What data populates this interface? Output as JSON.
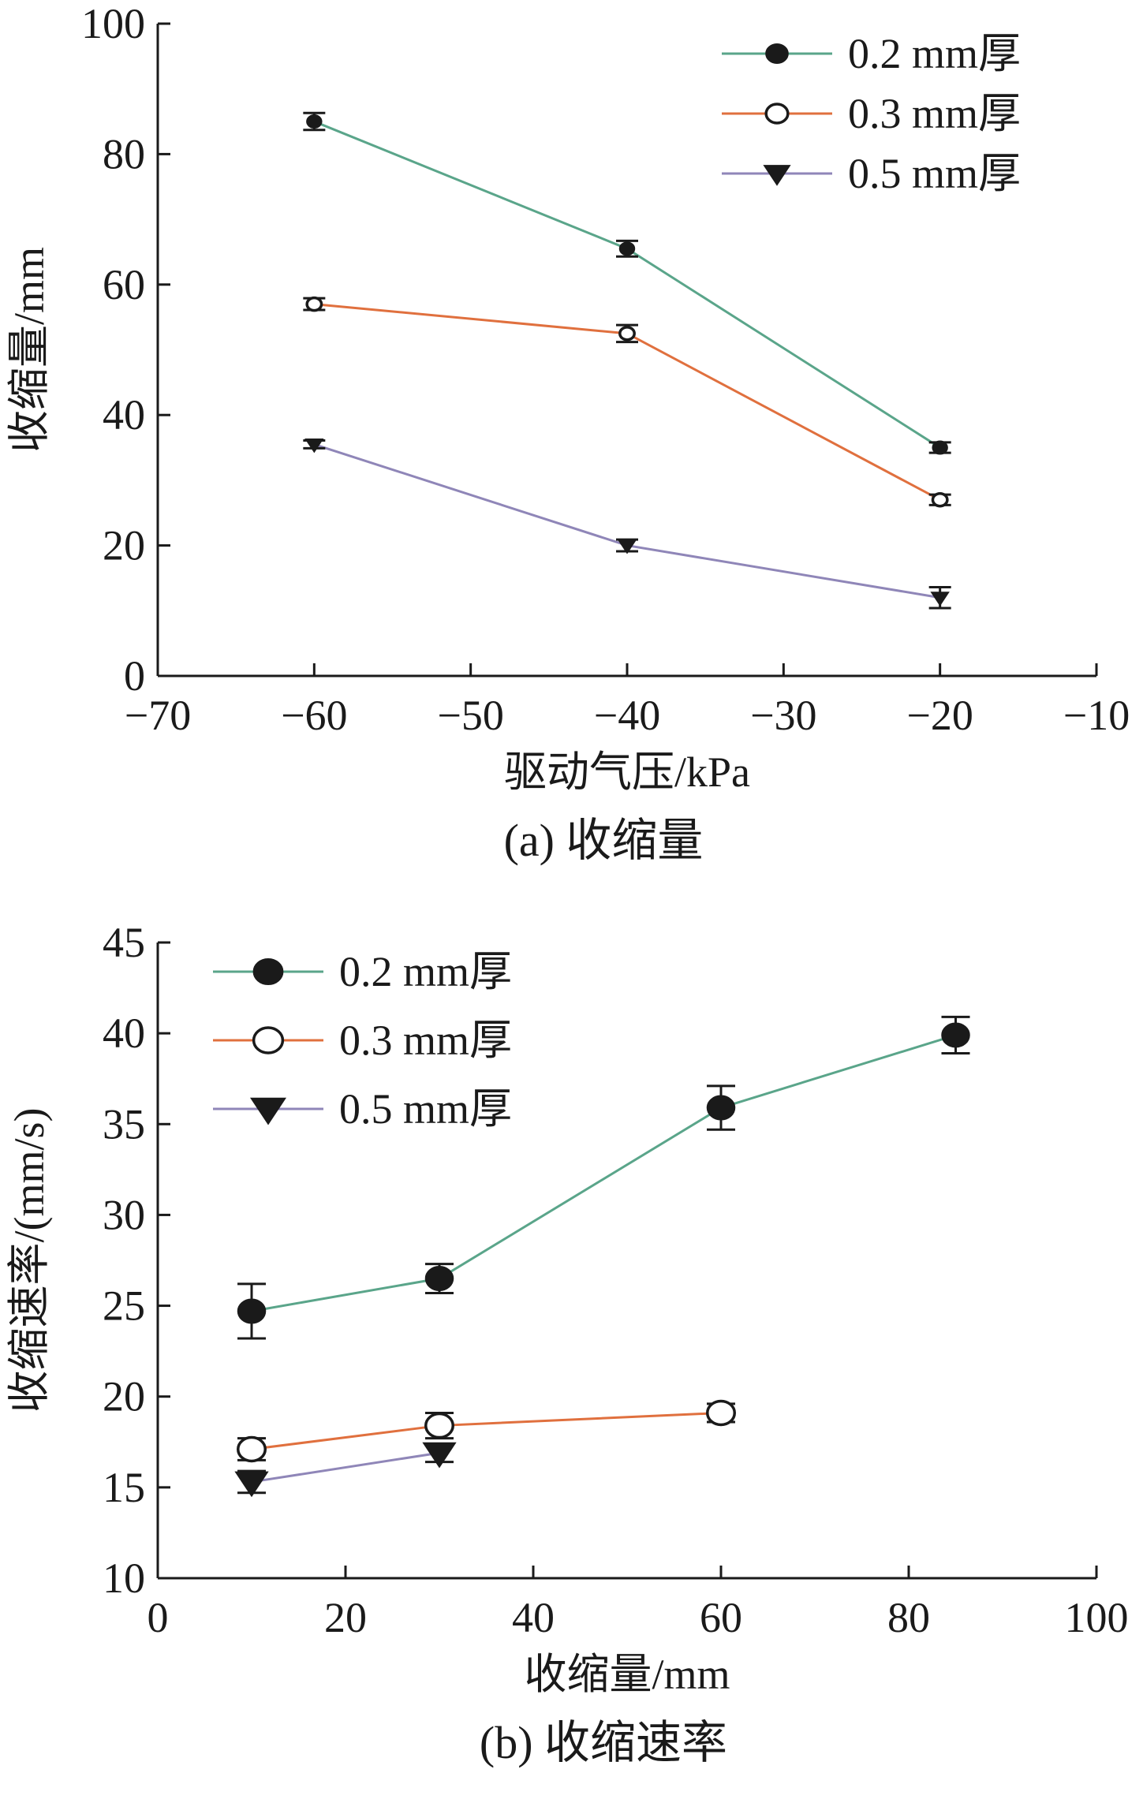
{
  "colors": {
    "axis": "#1a1a1a",
    "series_0_2": "#5aa58a",
    "series_0_3": "#e0703e",
    "series_0_5": "#8f86b8",
    "marker": "#1a1a1a"
  },
  "chart_data": [
    {
      "type": "line",
      "caption": "(a)  收缩量",
      "xlabel": "驱动气压/kPa",
      "ylabel": "收缩量/mm",
      "xlim": [
        -70,
        -10
      ],
      "ylim": [
        0,
        100
      ],
      "xticks": [
        -70,
        -60,
        -50,
        -40,
        -30,
        -20,
        -10
      ],
      "xtick_labels": [
        "−70",
        "−60",
        "−50",
        "−40",
        "−30",
        "−20",
        "−10"
      ],
      "yticks": [
        0,
        20,
        40,
        60,
        80,
        100
      ],
      "ytick_labels": [
        "0",
        "20",
        "40",
        "60",
        "80",
        "100"
      ],
      "legend_position": "top-right",
      "series": [
        {
          "name": "0.2 mm厚",
          "marker": "filled-circle",
          "color_key": "series_0_2",
          "x": [
            -60,
            -40,
            -20
          ],
          "y": [
            85,
            65.5,
            35
          ],
          "err": [
            1.3,
            1.2,
            0.8
          ]
        },
        {
          "name": "0.3 mm厚",
          "marker": "open-circle",
          "color_key": "series_0_3",
          "x": [
            -60,
            -40,
            -20
          ],
          "y": [
            57,
            52.5,
            27
          ],
          "err": [
            0.9,
            1.3,
            0.8
          ]
        },
        {
          "name": "0.5 mm厚",
          "marker": "down-triangle",
          "color_key": "series_0_5",
          "x": [
            -60,
            -40,
            -20
          ],
          "y": [
            35.5,
            20,
            12
          ],
          "err": [
            0.6,
            0.9,
            1.6
          ]
        }
      ]
    },
    {
      "type": "line",
      "caption": "(b)  收缩速率",
      "xlabel": "收缩量/mm",
      "ylabel": "收缩速率/(mm/s)",
      "xlim": [
        0,
        100
      ],
      "ylim": [
        10,
        45
      ],
      "xticks": [
        0,
        20,
        40,
        60,
        80,
        100
      ],
      "xtick_labels": [
        "0",
        "20",
        "40",
        "60",
        "80",
        "100"
      ],
      "yticks": [
        10,
        15,
        20,
        25,
        30,
        35,
        40,
        45
      ],
      "ytick_labels": [
        "10",
        "15",
        "20",
        "25",
        "30",
        "35",
        "40",
        "45"
      ],
      "legend_position": "top-left",
      "series": [
        {
          "name": "0.2 mm厚",
          "marker": "filled-circle",
          "color_key": "series_0_2",
          "x": [
            10,
            30,
            60,
            85
          ],
          "y": [
            24.7,
            26.5,
            35.9,
            39.9
          ],
          "err": [
            1.5,
            0.8,
            1.2,
            1.0
          ]
        },
        {
          "name": "0.3 mm厚",
          "marker": "open-circle",
          "color_key": "series_0_3",
          "x": [
            10,
            30,
            60
          ],
          "y": [
            17.1,
            18.4,
            19.1
          ],
          "err": [
            0.6,
            0.7,
            0.5
          ]
        },
        {
          "name": "0.5 mm厚",
          "marker": "down-triangle",
          "color_key": "series_0_5",
          "x": [
            10,
            30
          ],
          "y": [
            15.3,
            16.9
          ],
          "err": [
            0.6,
            0.5
          ]
        }
      ]
    }
  ]
}
